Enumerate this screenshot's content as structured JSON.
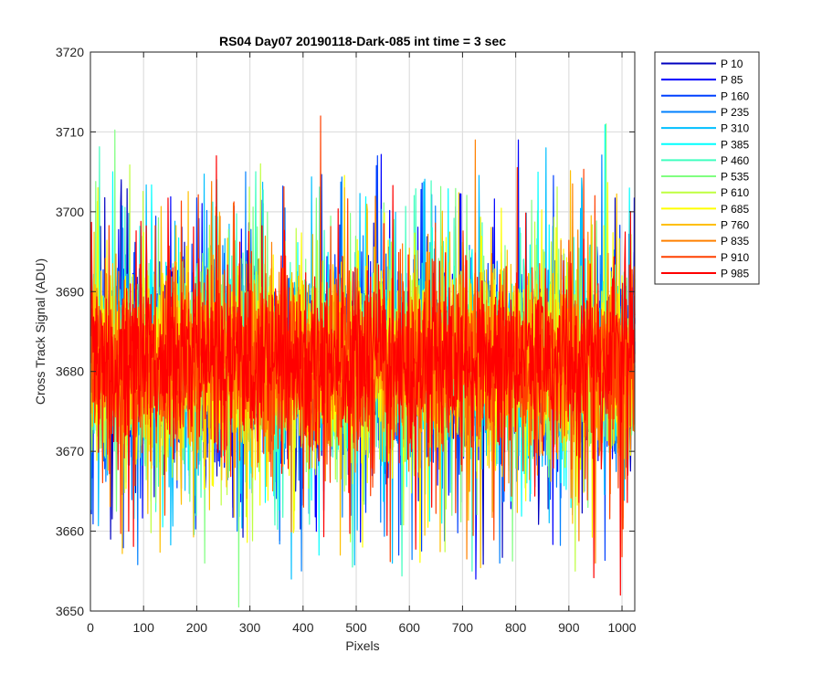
{
  "chart_data": {
    "type": "line",
    "title": "RS04 Day07 20190118-Dark-085 int time = 3 sec",
    "xlabel": "Pixels",
    "ylabel": "Cross Track Signal (ADU)",
    "xlim": [
      0,
      1024
    ],
    "ylim": [
      3650,
      3720
    ],
    "xticks": [
      "0",
      "100",
      "200",
      "300",
      "400",
      "500",
      "600",
      "700",
      "800",
      "900",
      "1000"
    ],
    "yticks": [
      "3650",
      "3660",
      "3670",
      "3680",
      "3690",
      "3700",
      "3710",
      "3720"
    ],
    "grid": true,
    "legend_position": "outside-top-right",
    "x": "1..1024 (one sample per pixel)",
    "series": [
      {
        "name": "P 10",
        "color": "#0000bf",
        "mean": 3681,
        "spread": 18,
        "peak": {
          "x": 58,
          "y": 3704
        },
        "dip": {
          "x": 38,
          "y": 3659
        }
      },
      {
        "name": "P 85",
        "color": "#0000ff",
        "mean": 3681,
        "spread": 18,
        "peak": {
          "x": 805,
          "y": 3709
        },
        "dip": {
          "x": 725,
          "y": 3654
        }
      },
      {
        "name": "P 160",
        "color": "#0040ff",
        "mean": 3681,
        "spread": 18,
        "peak": {
          "x": 540,
          "y": 3707
        },
        "dip": {
          "x": 580,
          "y": 3657
        }
      },
      {
        "name": "P 235",
        "color": "#0080ff",
        "mean": 3681,
        "spread": 18,
        "peak": {
          "x": 292,
          "y": 3705
        },
        "dip": {
          "x": 770,
          "y": 3656
        }
      },
      {
        "name": "P 310",
        "color": "#00bfff",
        "mean": 3681,
        "spread": 18,
        "peak": {
          "x": 857,
          "y": 3708
        },
        "dip": {
          "x": 378,
          "y": 3654
        }
      },
      {
        "name": "P 385",
        "color": "#00ffff",
        "mean": 3681,
        "spread": 18,
        "peak": {
          "x": 42,
          "y": 3705
        },
        "dip": {
          "x": 430,
          "y": 3657
        }
      },
      {
        "name": "P 460",
        "color": "#40ffbf",
        "mean": 3681,
        "spread": 18,
        "peak": {
          "x": 238,
          "y": 3704
        },
        "dip": {
          "x": 718,
          "y": 3655
        }
      },
      {
        "name": "P 535",
        "color": "#80ff80",
        "mean": 3681,
        "spread": 18,
        "peak": {
          "x": 970,
          "y": 3711
        },
        "dip": {
          "x": 215,
          "y": 3656
        }
      },
      {
        "name": "P 610",
        "color": "#bfff40",
        "mean": 3681,
        "spread": 18,
        "peak": {
          "x": 320,
          "y": 3706
        },
        "dip": {
          "x": 912,
          "y": 3655
        }
      },
      {
        "name": "P 685",
        "color": "#ffff00",
        "mean": 3681,
        "spread": 18,
        "peak": {
          "x": 14,
          "y": 3703
        },
        "dip": {
          "x": 512,
          "y": 3658
        }
      },
      {
        "name": "P 760",
        "color": "#ffbf00",
        "mean": 3681,
        "spread": 18,
        "peak": {
          "x": 478,
          "y": 3703
        },
        "dip": {
          "x": 470,
          "y": 3657
        }
      },
      {
        "name": "P 835",
        "color": "#ff8000",
        "mean": 3681,
        "spread": 18,
        "peak": {
          "x": 724,
          "y": 3709
        },
        "dip": {
          "x": 950,
          "y": 3656
        }
      },
      {
        "name": "P 910",
        "color": "#ff4000",
        "mean": 3681,
        "spread": 18,
        "peak": {
          "x": 433,
          "y": 3712
        },
        "dip": {
          "x": 140,
          "y": 3662
        }
      },
      {
        "name": "P 985",
        "color": "#ff0000",
        "mean": 3681,
        "spread": 18,
        "peak": {
          "x": 237,
          "y": 3707
        },
        "dip": {
          "x": 997,
          "y": 3652
        }
      }
    ]
  }
}
